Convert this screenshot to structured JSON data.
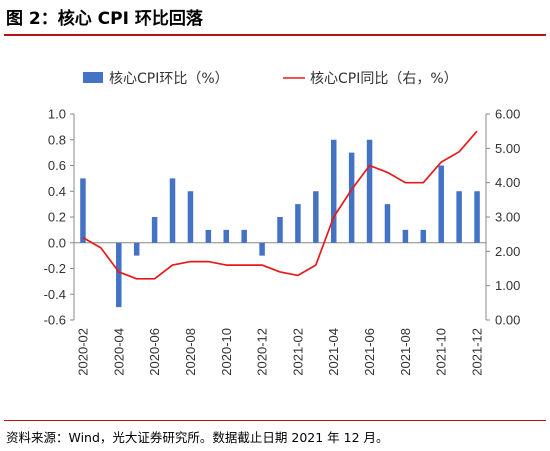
{
  "title": "图 2：核心 CPI 环比回落",
  "source": "资料来源：Wind，光大证券研究所。数据截止日期 2021 年 12 月。",
  "chart_data": {
    "type": "bar+line",
    "title": "核心 CPI 环比回落",
    "categories": [
      "2020-02",
      "2020-03",
      "2020-04",
      "2020-05",
      "2020-06",
      "2020-07",
      "2020-08",
      "2020-09",
      "2020-10",
      "2020-11",
      "2020-12",
      "2021-01",
      "2021-02",
      "2021-03",
      "2021-04",
      "2021-05",
      "2021-06",
      "2021-07",
      "2021-08",
      "2021-09",
      "2021-10",
      "2021-11",
      "2021-12"
    ],
    "tick_labels": [
      "2020-02",
      "2020-04",
      "2020-06",
      "2020-08",
      "2020-10",
      "2020-12",
      "2021-02",
      "2021-04",
      "2021-06",
      "2021-08",
      "2021-10",
      "2021-12"
    ],
    "series": [
      {
        "name": "核心CPI环比（%）",
        "type": "bar",
        "axis": "left",
        "color": "#4472c4",
        "values": [
          0.5,
          0.0,
          -0.5,
          -0.1,
          0.2,
          0.5,
          0.4,
          0.1,
          0.1,
          0.1,
          -0.1,
          0.2,
          0.3,
          0.4,
          0.8,
          0.7,
          0.8,
          0.3,
          0.1,
          0.1,
          0.6,
          0.4,
          0.4
        ]
      },
      {
        "name": "核心CPI同比（右，%）",
        "type": "line",
        "axis": "right",
        "color": "#e8191a",
        "values": [
          2.4,
          2.1,
          1.4,
          1.2,
          1.2,
          1.6,
          1.7,
          1.7,
          1.6,
          1.6,
          1.6,
          1.4,
          1.3,
          1.6,
          3.0,
          3.8,
          4.5,
          4.3,
          4.0,
          4.0,
          4.6,
          4.9,
          5.5
        ]
      }
    ],
    "y_left": {
      "min": -0.6,
      "max": 1.0,
      "step": 0.2,
      "tick_labels": [
        "1.0",
        "0.8",
        "0.6",
        "0.4",
        "0.2",
        "0.0",
        "-0.2",
        "-0.4",
        "-0.6"
      ]
    },
    "y_right": {
      "min": 0.0,
      "max": 6.0,
      "step": 1.0,
      "tick_labels": [
        "6.00",
        "5.00",
        "4.00",
        "3.00",
        "2.00",
        "1.00",
        "0.00"
      ]
    },
    "legend_position": "top",
    "grid": false
  }
}
